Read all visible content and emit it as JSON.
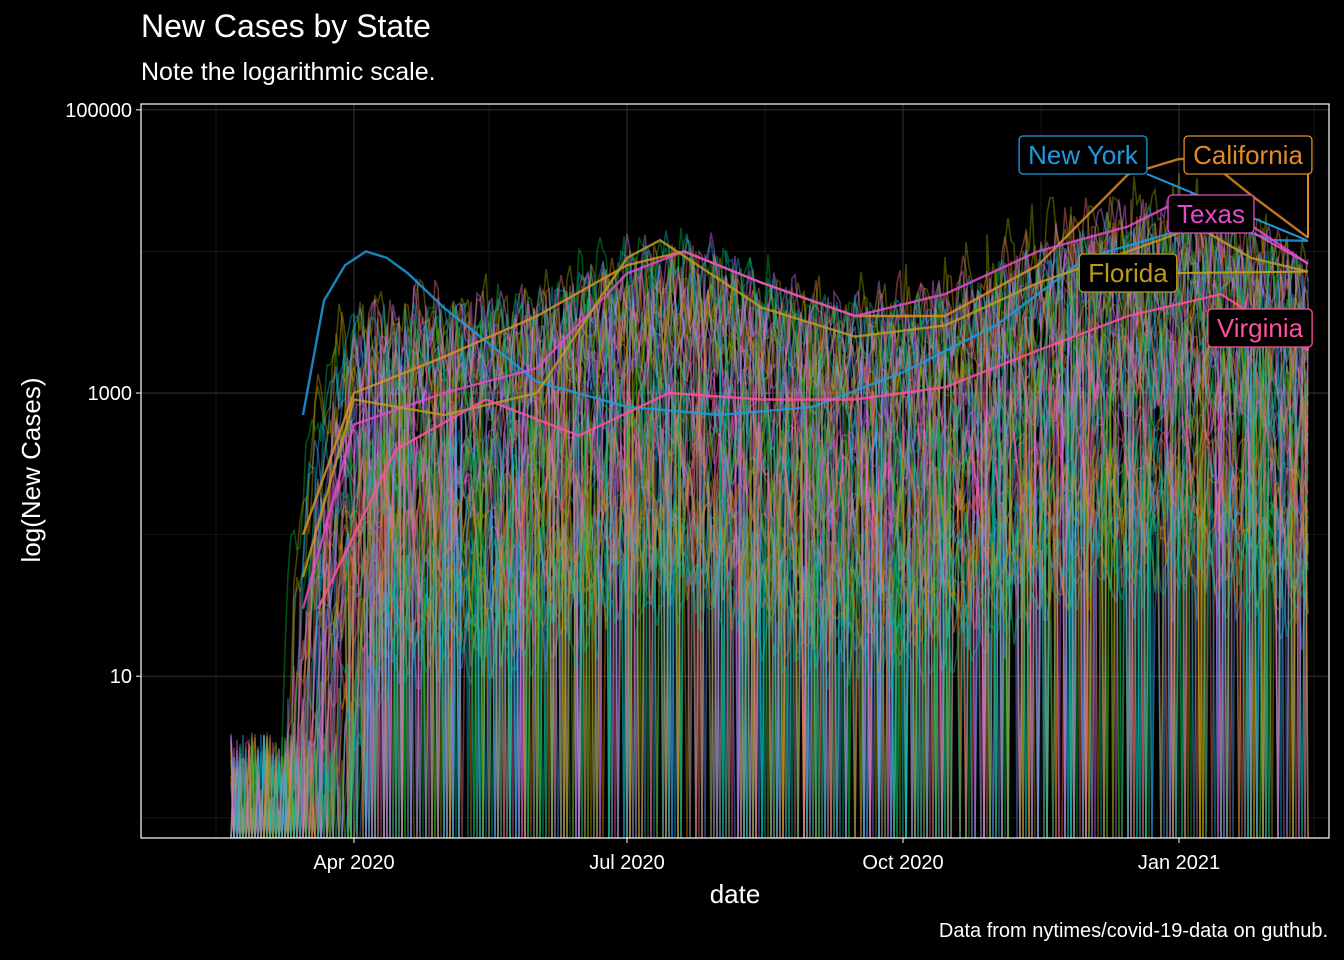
{
  "title": "New Cases by State",
  "subtitle": "Note the logarithmic scale.",
  "caption": "Data from nytimes/covid-19-data on guthub.",
  "colors": {
    "background": "#000000",
    "grid": "#3a3a3a",
    "panel_border": "#ffffff",
    "series_palette": [
      "#f8766d",
      "#d39200",
      "#93aa00",
      "#00ba38",
      "#00c19f",
      "#00b9e3",
      "#619cff",
      "#db72fb",
      "#ff61c3"
    ]
  },
  "chart_data": {
    "type": "line",
    "title": "New Cases by State",
    "subtitle": "Note the logarithmic scale.",
    "xlabel": "date",
    "ylabel": "log(New Cases)",
    "x_scale": "date",
    "y_scale": "log10",
    "xlim": [
      "2020-01-21",
      "2021-02-20"
    ],
    "ylim": [
      0.72,
      110000
    ],
    "x_ticks": [
      {
        "date": "2020-04-01",
        "label": "Apr 2020"
      },
      {
        "date": "2020-07-01",
        "label": "Jul 2020"
      },
      {
        "date": "2020-10-01",
        "label": "Oct 2020"
      },
      {
        "date": "2021-01-01",
        "label": "Jan 2021"
      }
    ],
    "y_ticks": [
      {
        "value": 10,
        "label": "10"
      },
      {
        "value": 1000,
        "label": "1000"
      },
      {
        "value": 100000,
        "label": "100000"
      }
    ],
    "grid": true,
    "legend": "none",
    "highlighted": [
      {
        "label": "New York",
        "color": "#1e9be0",
        "dates": [
          "2020-03-15",
          "2020-03-22",
          "2020-03-29",
          "2020-04-05",
          "2020-04-12",
          "2020-04-19",
          "2020-05-01",
          "2020-06-01",
          "2020-07-01",
          "2020-08-01",
          "2020-09-01",
          "2020-10-01",
          "2020-11-01",
          "2020-12-01",
          "2021-01-01",
          "2021-01-15",
          "2021-02-01",
          "2021-02-13"
        ],
        "values": [
          700,
          4500,
          8000,
          10000,
          9000,
          7000,
          4000,
          1200,
          800,
          700,
          800,
          1400,
          3000,
          9000,
          14000,
          16000,
          12000,
          11900
        ]
      },
      {
        "label": "California",
        "color": "#e08b26",
        "dates": [
          "2020-03-15",
          "2020-04-01",
          "2020-05-01",
          "2020-06-01",
          "2020-07-01",
          "2020-07-20",
          "2020-08-15",
          "2020-09-15",
          "2020-10-15",
          "2020-11-15",
          "2020-12-15",
          "2021-01-01",
          "2021-01-10",
          "2021-01-25",
          "2021-02-13"
        ],
        "values": [
          100,
          1000,
          1800,
          3500,
          8000,
          10000,
          6000,
          3500,
          3500,
          8000,
          35000,
          45000,
          45000,
          25000,
          12500
        ]
      },
      {
        "label": "Texas",
        "color": "#e349cc",
        "dates": [
          "2020-03-15",
          "2020-04-01",
          "2020-05-01",
          "2020-06-01",
          "2020-07-01",
          "2020-07-20",
          "2020-08-15",
          "2020-09-15",
          "2020-10-15",
          "2020-11-15",
          "2020-12-15",
          "2021-01-05",
          "2021-01-20",
          "2021-02-13"
        ],
        "values": [
          30,
          600,
          1000,
          1500,
          7000,
          10000,
          6000,
          3500,
          5000,
          10000,
          15000,
          25000,
          18000,
          8200
        ]
      },
      {
        "label": "Florida",
        "color": "#bc9a1e",
        "dates": [
          "2020-03-15",
          "2020-04-01",
          "2020-05-01",
          "2020-06-01",
          "2020-07-01",
          "2020-07-12",
          "2020-08-15",
          "2020-09-15",
          "2020-10-15",
          "2020-11-15",
          "2020-12-15",
          "2021-01-07",
          "2021-01-25",
          "2021-02-13"
        ],
        "values": [
          50,
          900,
          700,
          1000,
          9000,
          12000,
          4000,
          2500,
          3000,
          6000,
          10000,
          15000,
          9000,
          7200
        ]
      },
      {
        "label": "Virginia",
        "color": "#ff4fa0",
        "dates": [
          "2020-03-20",
          "2020-04-15",
          "2020-05-15",
          "2020-06-15",
          "2020-07-15",
          "2020-08-15",
          "2020-09-15",
          "2020-10-15",
          "2020-11-15",
          "2020-12-15",
          "2021-01-15",
          "2021-02-13"
        ],
        "values": [
          30,
          400,
          900,
          500,
          1000,
          900,
          900,
          1100,
          2000,
          3500,
          5000,
          2000
        ]
      }
    ]
  }
}
